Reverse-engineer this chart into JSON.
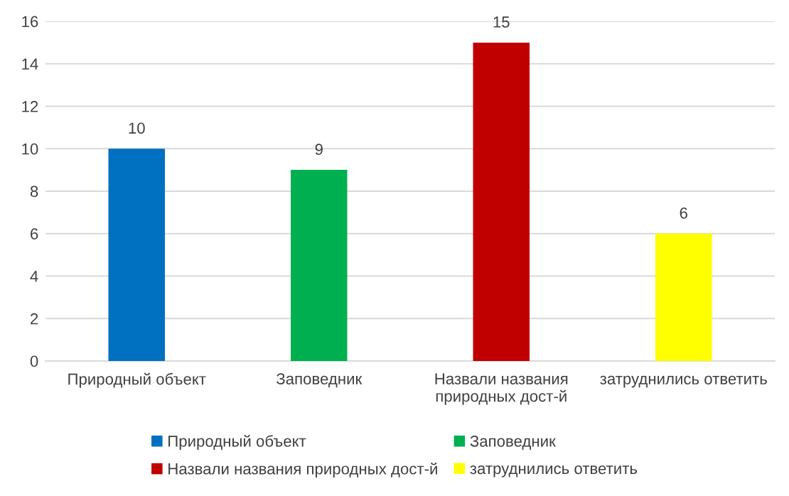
{
  "chart_data": {
    "type": "bar",
    "categories": [
      "Природный объект",
      "Заповедник",
      "Назвали названия природных дост-й",
      "затруднились ответить"
    ],
    "series": [
      {
        "name": "Природный объект",
        "color": "#0070c0",
        "values": [
          10,
          null,
          null,
          null
        ]
      },
      {
        "name": "Заповедник",
        "color": "#00b050",
        "values": [
          null,
          9,
          null,
          null
        ]
      },
      {
        "name": "Назвали названия природных дост-й",
        "color": "#c00000",
        "values": [
          null,
          null,
          15,
          null
        ]
      },
      {
        "name": "затруднились ответить",
        "color": "#ffff00",
        "values": [
          null,
          null,
          null,
          6
        ]
      }
    ],
    "ylim": [
      0,
      16
    ],
    "yticks": [
      0,
      2,
      4,
      6,
      8,
      10,
      12,
      14,
      16
    ],
    "grid": "y",
    "legend": "bottom",
    "data_labels": true
  }
}
